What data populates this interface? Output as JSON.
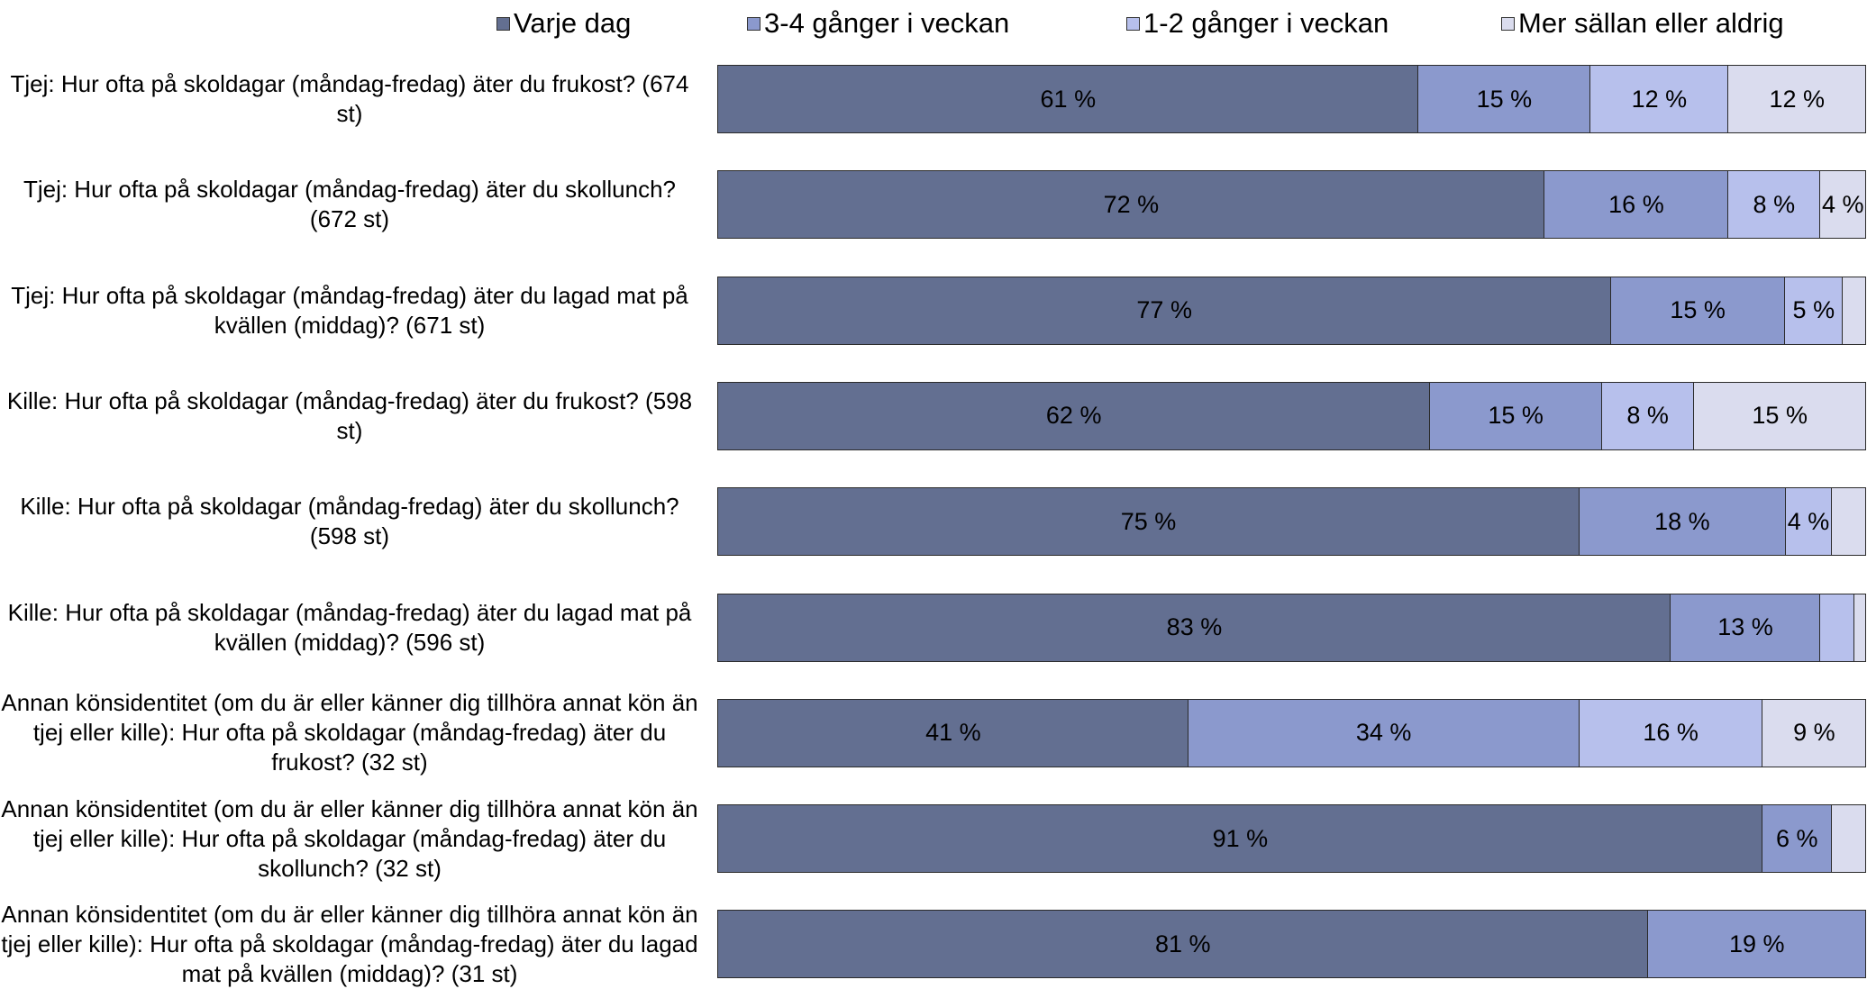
{
  "chart_data": {
    "type": "bar",
    "orientation": "horizontal",
    "stacked": true,
    "xlim": [
      0,
      100
    ],
    "legend_position": "top",
    "series": [
      {
        "name": "Varje dag",
        "color": "#636f91"
      },
      {
        "name": "3-4 gånger i veckan",
        "color": "#8b99cd"
      },
      {
        "name": "1-2 gånger i veckan",
        "color": "#b7c0ec"
      },
      {
        "name": "Mer sällan eller aldrig",
        "color": "#dadcee"
      }
    ],
    "rows": [
      {
        "label": "Tjej: Hur ofta på skoldagar (måndag-fredag) äter du frukost? (674 st)",
        "values": [
          61,
          15,
          12,
          12
        ],
        "labels": [
          "61 %",
          "15 %",
          "12 %",
          "12 %"
        ]
      },
      {
        "label": "Tjej: Hur ofta på skoldagar (måndag-fredag) äter du skollunch? (672 st)",
        "values": [
          72,
          16,
          8,
          4
        ],
        "labels": [
          "72 %",
          "16 %",
          "8 %",
          "4 %"
        ]
      },
      {
        "label": "Tjej: Hur ofta på skoldagar (måndag-fredag) äter du lagad mat på kvällen (middag)? (671 st)",
        "values": [
          77,
          15,
          5,
          2
        ],
        "labels": [
          "77 %",
          "15 %",
          "5 %",
          ""
        ]
      },
      {
        "label": "Kille: Hur ofta på skoldagar (måndag-fredag) äter du frukost? (598 st)",
        "values": [
          62,
          15,
          8,
          15
        ],
        "labels": [
          "62 %",
          "15 %",
          "8 %",
          "15 %"
        ]
      },
      {
        "label": "Kille: Hur ofta på skoldagar (måndag-fredag) äter du skollunch? (598 st)",
        "values": [
          75,
          18,
          4,
          3
        ],
        "labels": [
          "75 %",
          "18 %",
          "4 %",
          ""
        ]
      },
      {
        "label": "Kille: Hur ofta på skoldagar (måndag-fredag) äter du lagad mat på kvällen (middag)? (596 st)",
        "values": [
          83,
          13,
          3,
          1
        ],
        "labels": [
          "83 %",
          "13 %",
          "",
          ""
        ]
      },
      {
        "label": "Annan könsidentitet (om du är eller känner dig tillhöra annat kön än tjej eller kille): Hur ofta på skoldagar (måndag-fredag) äter du frukost? (32 st)",
        "values": [
          41,
          34,
          16,
          9
        ],
        "labels": [
          "41 %",
          "34 %",
          "16 %",
          "9 %"
        ]
      },
      {
        "label": "Annan könsidentitet (om du är eller känner dig tillhöra annat kön än tjej eller kille): Hur ofta på skoldagar (måndag-fredag) äter du skollunch? (32 st)",
        "values": [
          91,
          6,
          0,
          3
        ],
        "labels": [
          "91 %",
          "6 %",
          "",
          ""
        ]
      },
      {
        "label": "Annan könsidentitet (om du är eller känner dig tillhöra annat kön än tjej eller kille): Hur ofta på skoldagar (måndag-fredag) äter du lagad mat på kvällen (middag)? (31 st)",
        "values": [
          81,
          19,
          0,
          0
        ],
        "labels": [
          "81 %",
          "19 %",
          "",
          ""
        ]
      }
    ]
  }
}
